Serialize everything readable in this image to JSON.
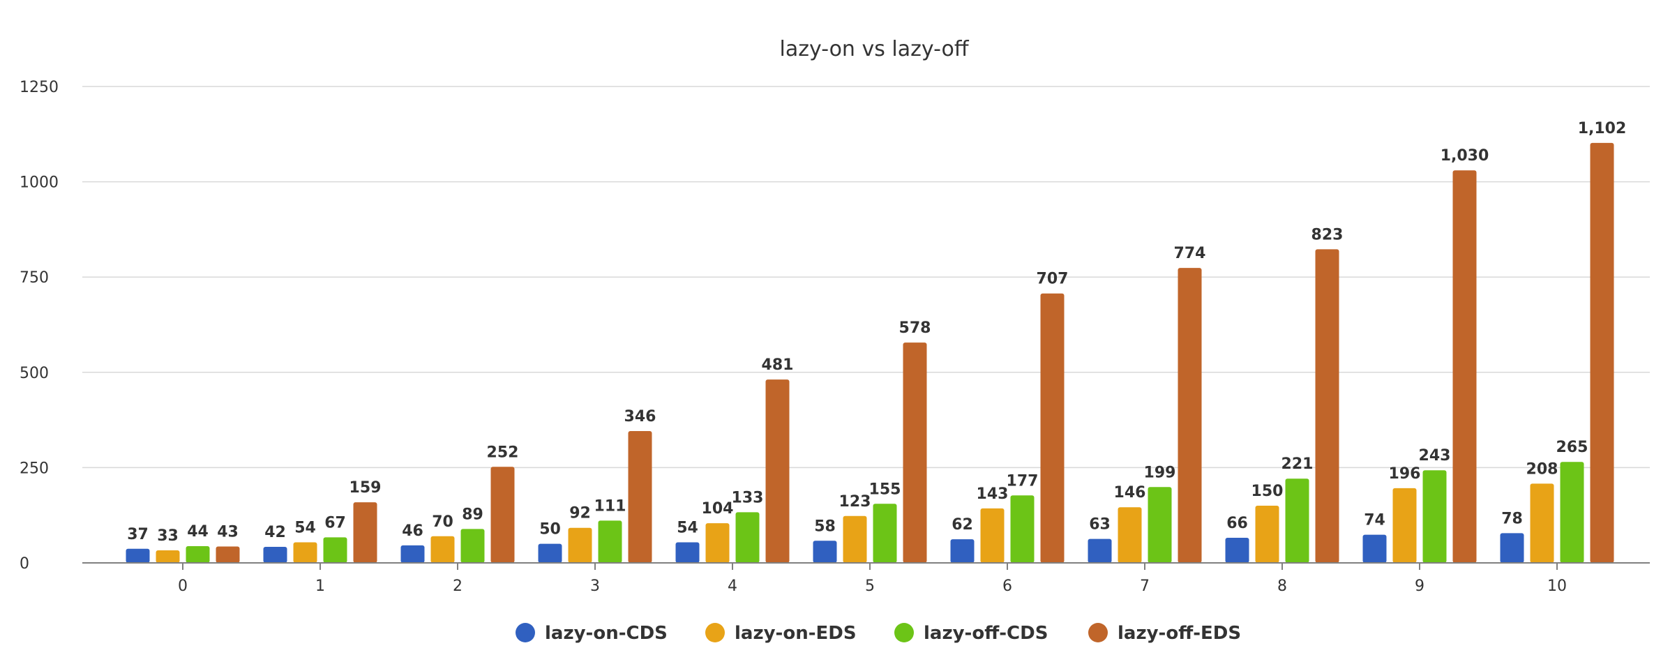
{
  "chart_data": {
    "type": "bar",
    "title": "lazy-on vs lazy-off",
    "xlabel": "",
    "ylabel": "",
    "categories": [
      "0",
      "1",
      "2",
      "3",
      "4",
      "5",
      "6",
      "7",
      "8",
      "9",
      "10"
    ],
    "series": [
      {
        "name": "lazy-on-CDS",
        "color": "#3060c0",
        "values": [
          37,
          42,
          46,
          50,
          54,
          58,
          62,
          63,
          66,
          74,
          78
        ]
      },
      {
        "name": "lazy-on-EDS",
        "color": "#e8a317",
        "values": [
          33,
          54,
          70,
          92,
          104,
          123,
          143,
          146,
          150,
          196,
          208
        ]
      },
      {
        "name": "lazy-off-CDS",
        "color": "#6cc417",
        "values": [
          44,
          67,
          89,
          111,
          133,
          155,
          177,
          199,
          221,
          243,
          265
        ]
      },
      {
        "name": "lazy-off-EDS",
        "color": "#c0652a",
        "values": [
          43,
          159,
          252,
          346,
          481,
          578,
          707,
          774,
          823,
          1030,
          1102
        ]
      }
    ],
    "ylim": [
      0,
      1250
    ],
    "yticks": [
      "0",
      "250",
      "500",
      "750",
      "1000",
      "1250"
    ],
    "grid": true,
    "legend_position": "bottom",
    "data_labels": true
  }
}
